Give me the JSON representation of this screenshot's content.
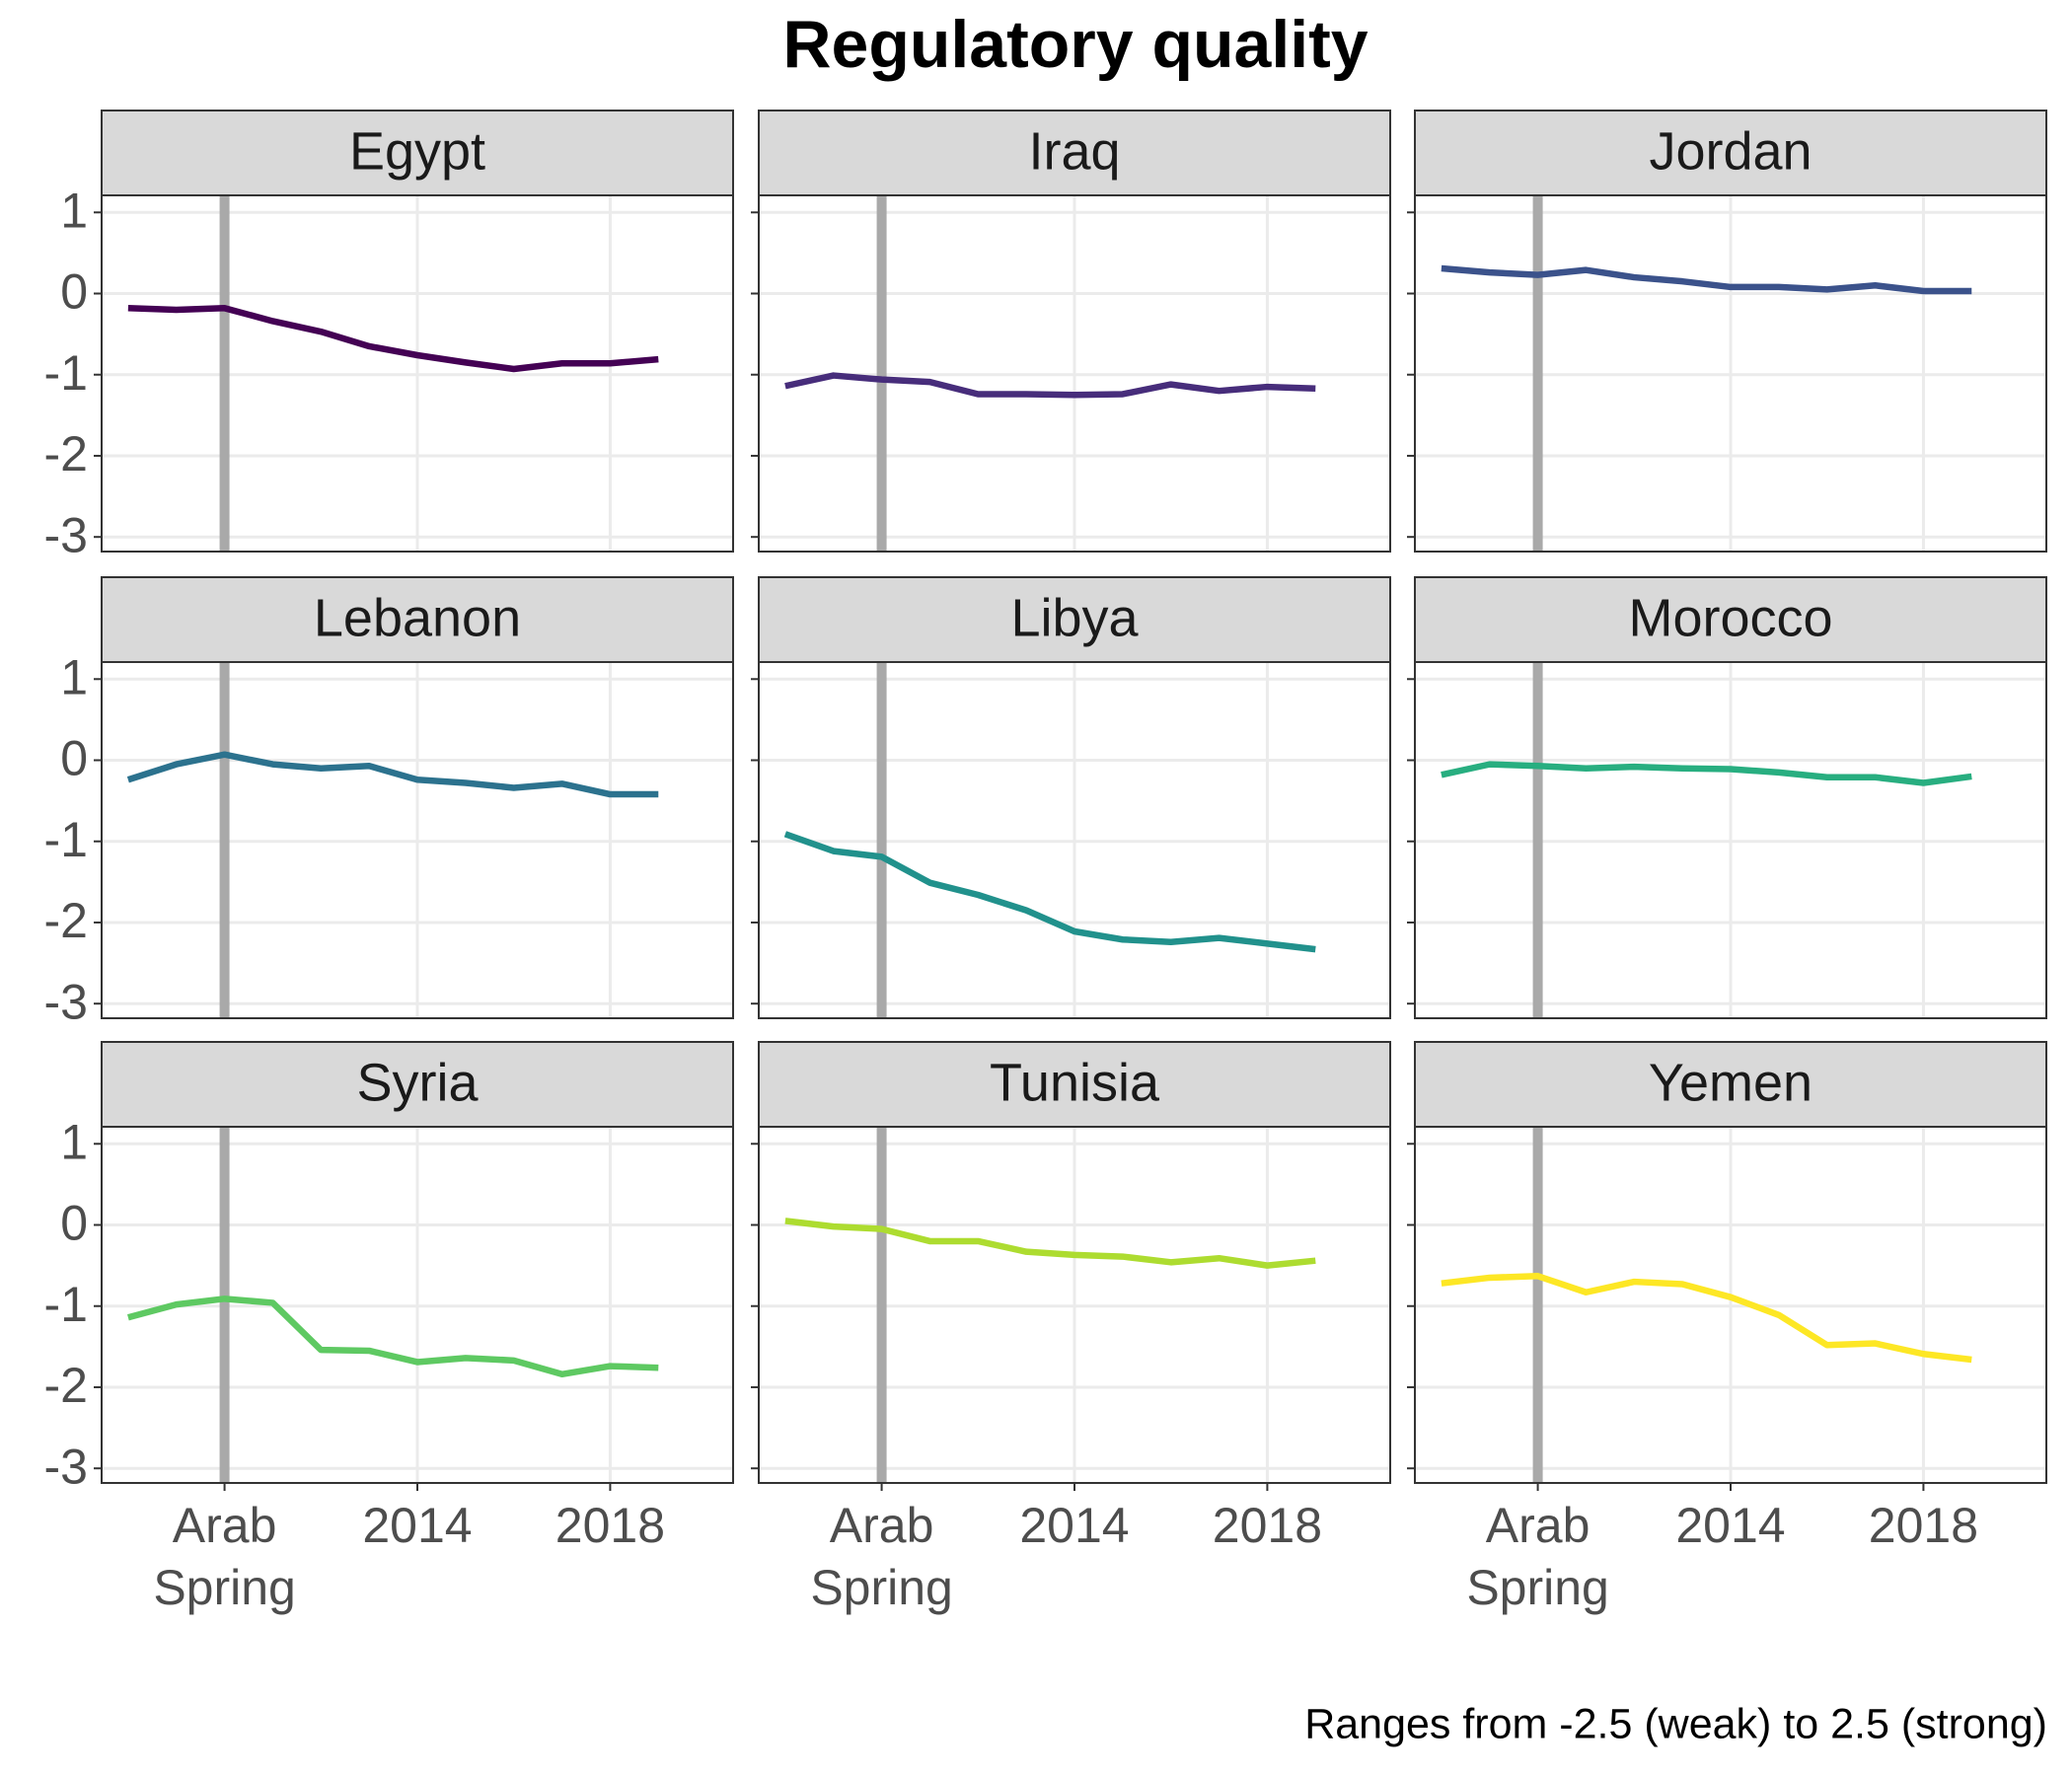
{
  "chart_data": {
    "type": "line",
    "title": "Regulatory quality",
    "caption": "Ranges from -2.5 (weak) to 2.5 (strong)",
    "x": [
      2008,
      2009,
      2010,
      2011,
      2012,
      2013,
      2014,
      2015,
      2016,
      2017,
      2018,
      2019
    ],
    "xlim": [
      2007.45,
      2020.55
    ],
    "xticks": [
      {
        "value": 2010,
        "label": "Arab Spring"
      },
      2014,
      2018
    ],
    "ylim": [
      -3.18,
      1.21
    ],
    "yticks": [
      1,
      0,
      -1,
      -2,
      -3
    ],
    "vline": 2010,
    "grid": true,
    "series": [
      {
        "name": "Egypt",
        "color": "#440154",
        "values": [
          -0.18,
          -0.2,
          -0.18,
          -0.34,
          -0.47,
          -0.65,
          -0.76,
          -0.85,
          -0.93,
          -0.86,
          -0.86,
          -0.81
        ]
      },
      {
        "name": "Iraq",
        "color": "#472d7b",
        "values": [
          -1.14,
          -1.01,
          -1.06,
          -1.09,
          -1.24,
          -1.24,
          -1.25,
          -1.24,
          -1.12,
          -1.2,
          -1.15,
          -1.17
        ]
      },
      {
        "name": "Jordan",
        "color": "#3b528b",
        "values": [
          0.31,
          0.26,
          0.23,
          0.29,
          0.2,
          0.15,
          0.08,
          0.08,
          0.05,
          0.1,
          0.03,
          0.03
        ]
      },
      {
        "name": "Lebanon",
        "color": "#2c728e",
        "values": [
          -0.24,
          -0.05,
          0.07,
          -0.05,
          -0.1,
          -0.07,
          -0.24,
          -0.28,
          -0.34,
          -0.29,
          -0.42,
          -0.42
        ]
      },
      {
        "name": "Libya",
        "color": "#21918c",
        "values": [
          -0.91,
          -1.12,
          -1.19,
          -1.51,
          -1.66,
          -1.85,
          -2.11,
          -2.21,
          -2.24,
          -2.19,
          -2.26,
          -2.33
        ]
      },
      {
        "name": "Morocco",
        "color": "#28ae80",
        "values": [
          -0.18,
          -0.05,
          -0.07,
          -0.1,
          -0.08,
          -0.1,
          -0.11,
          -0.15,
          -0.21,
          -0.21,
          -0.28,
          -0.2
        ]
      },
      {
        "name": "Syria",
        "color": "#5ec962",
        "values": [
          -1.14,
          -0.98,
          -0.91,
          -0.96,
          -1.54,
          -1.55,
          -1.69,
          -1.64,
          -1.67,
          -1.84,
          -1.74,
          -1.76
        ]
      },
      {
        "name": "Tunisia",
        "color": "#addc30",
        "values": [
          0.05,
          -0.02,
          -0.05,
          -0.2,
          -0.2,
          -0.33,
          -0.37,
          -0.39,
          -0.46,
          -0.41,
          -0.5,
          -0.44
        ]
      },
      {
        "name": "Yemen",
        "color": "#fde725",
        "values": [
          -0.72,
          -0.65,
          -0.63,
          -0.83,
          -0.7,
          -0.73,
          -0.89,
          -1.11,
          -1.48,
          -1.46,
          -1.59,
          -1.66
        ]
      }
    ]
  }
}
